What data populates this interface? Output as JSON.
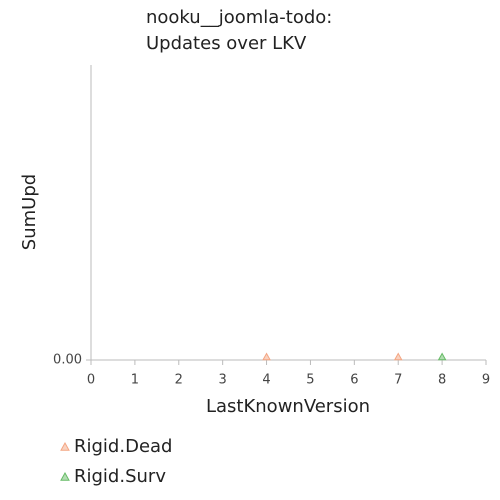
{
  "chart_data": {
    "type": "scatter",
    "title": [
      "nooku__joomla-todo:",
      "Updates over LKV"
    ],
    "x_label": "LastKnownVersion",
    "y_label": "SumUpd",
    "xlim": [
      0,
      9
    ],
    "xticks": [
      0,
      1,
      2,
      3,
      4,
      5,
      6,
      7,
      8,
      9
    ],
    "ylim": [
      0,
      1
    ],
    "yticks": [
      {
        "value": 0,
        "label": "0.00"
      }
    ],
    "series": [
      {
        "name": "Rigid.Dead",
        "color": "#f4a582",
        "x": [
          4,
          7
        ],
        "values": [
          0,
          0
        ]
      },
      {
        "name": "Rigid.Surv",
        "color": "#66bb66",
        "x": [
          8
        ],
        "values": [
          0
        ]
      }
    ]
  }
}
